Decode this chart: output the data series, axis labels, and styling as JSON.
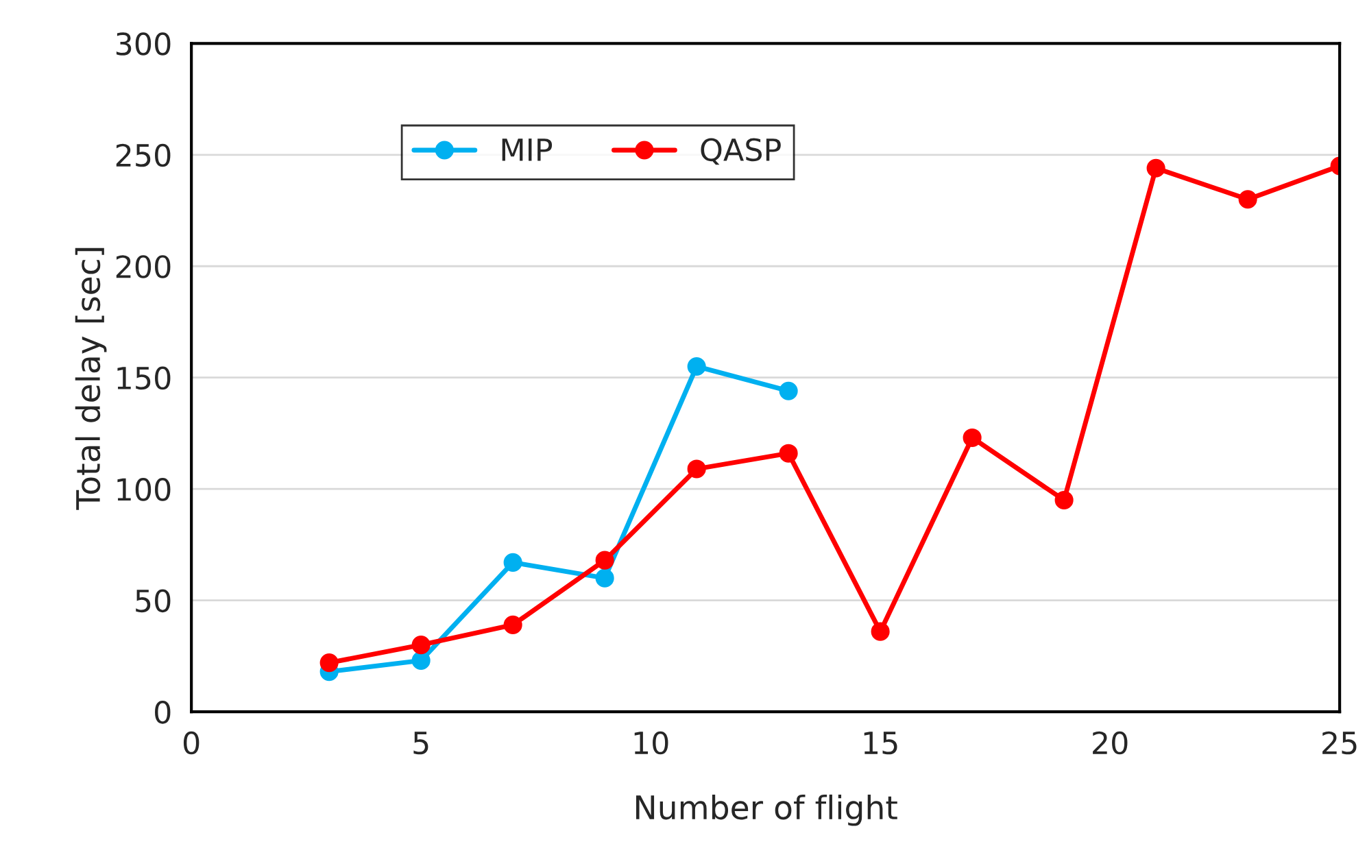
{
  "chart_data": {
    "type": "line",
    "xlabel": "Number of flight",
    "ylabel": "Total delay [sec]",
    "xlim": [
      0,
      25
    ],
    "xticks": [
      0,
      5,
      10,
      15,
      20,
      25
    ],
    "ylim": [
      0,
      300
    ],
    "yticks": [
      0,
      50,
      100,
      150,
      200,
      250,
      300
    ],
    "grid": "y",
    "legend": "top left",
    "marker": "circle",
    "line_style": "solid",
    "series": [
      {
        "name": "MIP",
        "color": "#00b0f0",
        "x": [
          3,
          5,
          7,
          9,
          11,
          13
        ],
        "values": [
          18,
          23,
          67,
          60,
          155,
          144
        ]
      },
      {
        "name": "QASP",
        "color": "#ff0000",
        "x": [
          3,
          5,
          7,
          9,
          11,
          13,
          15,
          17,
          19,
          21,
          23,
          25
        ],
        "values": [
          22,
          30,
          39,
          68,
          109,
          116,
          36,
          123,
          95,
          244,
          230,
          245
        ]
      }
    ]
  }
}
